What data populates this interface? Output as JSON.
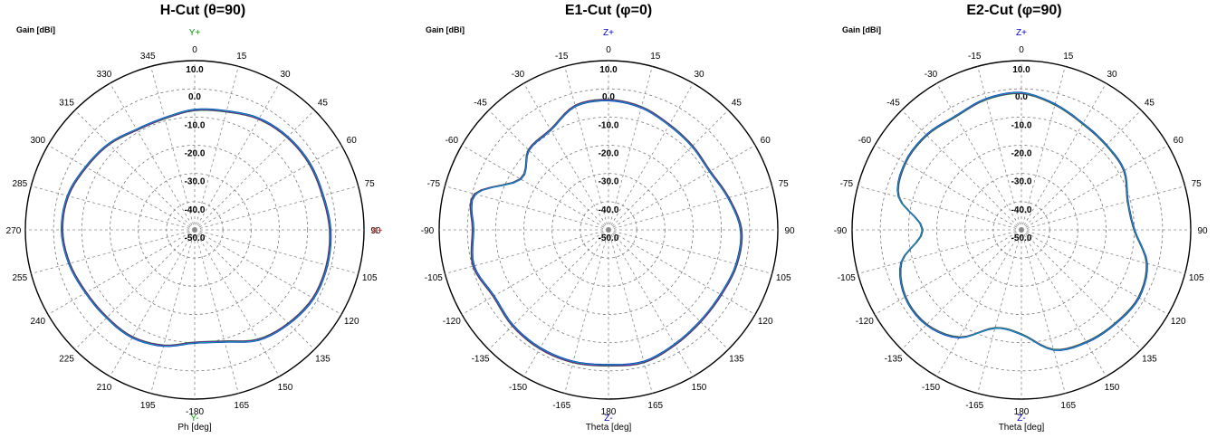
{
  "chart_data": [
    {
      "type": "polar-line",
      "title": "H-Cut (θ=90)",
      "rlabel": "Gain [dBi]",
      "xlabel": "Ph [deg]",
      "top_axis": {
        "letter": "Y",
        "sign": "+",
        "value": "90"
      },
      "bottom_axis": {
        "letter": "Y",
        "sign": "-",
        "value": "270"
      },
      "right_axis": {
        "letter": "X",
        "sign": "+",
        "value": "0"
      },
      "left_value": "-180",
      "angle_labels": [
        "90",
        "75",
        "60",
        "45",
        "30",
        "15",
        "0",
        "345",
        "330",
        "315",
        "300",
        "285",
        "270",
        "255",
        "240",
        "225",
        "210",
        "195",
        "-180",
        "165",
        "150",
        "135",
        "120",
        "105"
      ],
      "rlim": [
        -50,
        10
      ],
      "rings": [
        "10.0",
        "0.0",
        "-10.0",
        "-20.0",
        "-30.0",
        "-40.0",
        "-50.0"
      ],
      "series_colors": [
        "#d02020",
        "#009000",
        "#0000c0",
        "#9a00b0",
        "#00a0b0"
      ],
      "series": [
        {
          "angles": [
            0,
            15,
            30,
            45,
            60,
            75,
            90,
            105,
            120,
            135,
            150,
            165,
            180,
            195,
            210,
            225,
            240,
            255,
            270,
            285,
            300,
            315,
            330,
            345
          ],
          "values": [
            -2,
            -3,
            -3,
            -3.5,
            -4.5,
            -6.5,
            -7.5,
            -9,
            -9,
            -7,
            -5.5,
            -3.5,
            -3,
            -4,
            -5.5,
            -6,
            -6,
            -7.5,
            -10,
            -9,
            -5,
            -3,
            -1.5,
            -1.5
          ]
        }
      ]
    },
    {
      "type": "polar-line",
      "title": "E1-Cut (φ=0)",
      "rlabel": "Gain [dBi]",
      "xlabel": "Theta [deg]",
      "top_axis": {
        "letter": "Z",
        "sign": "+",
        "value": "0"
      },
      "bottom_axis": {
        "letter": "Z",
        "sign": "-",
        "value": "180"
      },
      "angle_labels": [
        "0",
        "15",
        "30",
        "45",
        "60",
        "75",
        "90",
        "105",
        "120",
        "135",
        "150",
        "165",
        "180",
        "-165",
        "-150",
        "-135",
        "-120",
        "-105",
        "-90",
        "-75",
        "-60",
        "-45",
        "-30",
        "-15"
      ],
      "rlim": [
        -50,
        10
      ],
      "rings": [
        "10.0",
        "0.0",
        "-10.0",
        "-20.0",
        "-30.0",
        "-40.0",
        "-50.0"
      ],
      "series_colors": [
        "#d02020",
        "#009000",
        "#0000c0",
        "#9a00b0",
        "#00a0b0"
      ],
      "series": [
        {
          "angles": [
            0,
            15,
            30,
            45,
            60,
            75,
            90,
            105,
            120,
            135,
            150,
            165,
            180,
            -165,
            -150,
            -135,
            -120,
            -105,
            -90,
            -75,
            -60,
            -45,
            -30,
            -15
          ],
          "values": [
            -4,
            -5,
            -7,
            -8,
            -8.5,
            -6,
            -3,
            -3,
            -4,
            -4,
            -3,
            -1.5,
            -2,
            -1.5,
            -1.5,
            -2,
            -3,
            -0.5,
            -2,
            -1,
            -14,
            -10,
            -9,
            -4.5
          ]
        }
      ]
    },
    {
      "type": "polar-line",
      "title": "E2-Cut (φ=90)",
      "rlabel": "Gain [dBi]",
      "xlabel": "Theta [deg]",
      "top_axis": {
        "letter": "Z",
        "sign": "+",
        "value": "0"
      },
      "bottom_axis": {
        "letter": "Z",
        "sign": "-",
        "value": "180"
      },
      "angle_labels": [
        "0",
        "15",
        "30",
        "45",
        "60",
        "75",
        "90",
        "105",
        "120",
        "135",
        "150",
        "165",
        "180",
        "-165",
        "-150",
        "-135",
        "-120",
        "-105",
        "-90",
        "-75",
        "-60",
        "-45",
        "-30",
        "-15"
      ],
      "rlim": [
        -50,
        10
      ],
      "rings": [
        "10.0",
        "0.0",
        "-10.0",
        "-20.0",
        "-30.0",
        "-40.0",
        "-50.0"
      ],
      "series_colors": [
        "#d02020",
        "#009000",
        "#0000c0",
        "#9a00b0",
        "#00a0b0"
      ],
      "series": [
        {
          "angles": [
            0,
            15,
            30,
            45,
            60,
            75,
            90,
            105,
            120,
            135,
            150,
            165,
            180,
            -165,
            -150,
            -135,
            -120,
            -105,
            -90,
            -75,
            -60,
            -45,
            -30,
            -15
          ],
          "values": [
            -1.5,
            -4,
            -6.5,
            -7.5,
            -8,
            -11,
            -10,
            -4,
            -2,
            -3,
            -4,
            -6,
            -13,
            -14,
            -6,
            -2.5,
            -2.5,
            -6,
            -15,
            -5,
            -2.5,
            -2.5,
            -3.5,
            -2
          ]
        }
      ]
    }
  ]
}
